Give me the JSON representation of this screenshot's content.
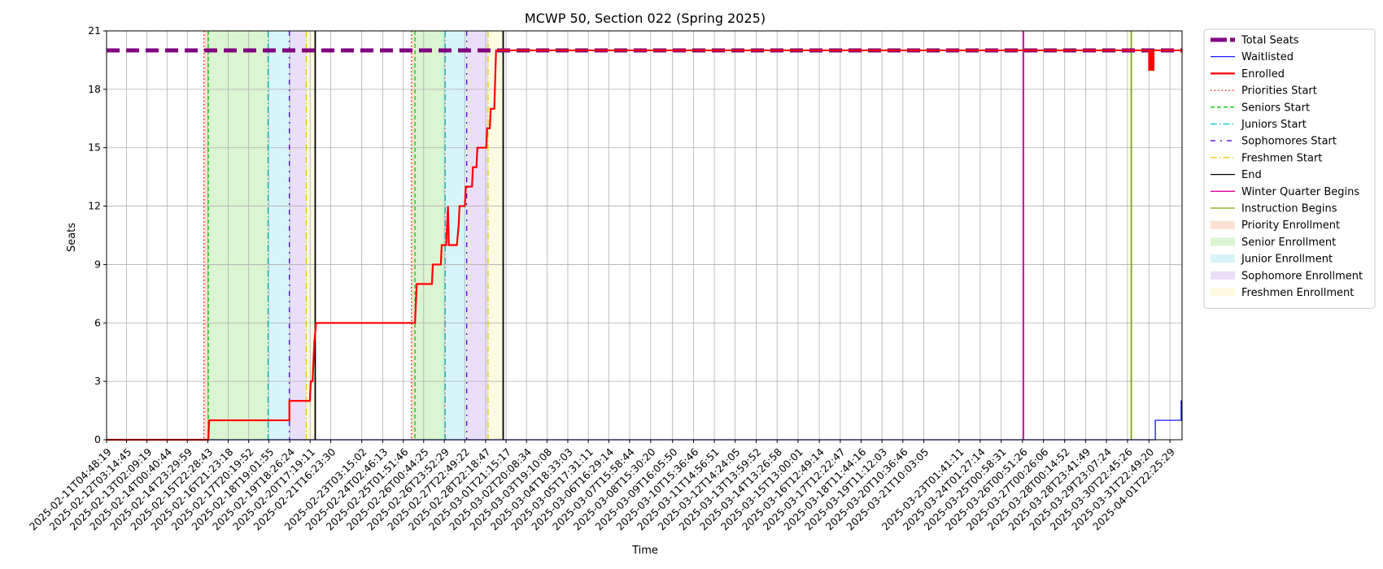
{
  "chart_data": {
    "type": "line",
    "title": "MCWP 50, Section 022 (Spring 2025)",
    "xlabel": "Time",
    "ylabel": "Seats",
    "ylim": [
      0,
      21
    ],
    "yticks": [
      0,
      3,
      6,
      9,
      12,
      15,
      18,
      21
    ],
    "grid": true,
    "legend_position": "outside-right",
    "x_range": [
      "2025-02-11T04:48:19",
      "2025-04-02T12:00:00"
    ],
    "xticks": [
      "2025-02-11T04:48:19",
      "2025-02-12T03:14:45",
      "2025-02-13T02:09:19",
      "2025-02-14T00:40:44",
      "2025-02-14T23:29:59",
      "2025-02-15T22:28:43",
      "2025-02-16T21:23:18",
      "2025-02-17T20:19:52",
      "2025-02-18T19:01:55",
      "2025-02-19T18:26:24",
      "2025-02-20T17:19:11",
      "2025-02-21T16:23:30",
      "2025-02-23T03:15:02",
      "2025-02-24T02:46:13",
      "2025-02-25T01:51:46",
      "2025-02-26T00:44:25",
      "2025-02-26T23:52:29",
      "2025-02-27T22:49:22",
      "2025-02-28T22:18:47",
      "2025-03-01T21:15:17",
      "2025-03-02T20:08:34",
      "2025-03-03T19:10:08",
      "2025-03-04T18:33:03",
      "2025-03-05T17:31:11",
      "2025-03-06T16:29:14",
      "2025-03-07T15:58:44",
      "2025-03-08T15:30:20",
      "2025-03-09T16:05:50",
      "2025-03-10T15:36:46",
      "2025-03-11T14:56:51",
      "2025-03-12T14:24:05",
      "2025-03-13T13:59:52",
      "2025-03-14T13:26:58",
      "2025-03-15T13:00:01",
      "2025-03-16T12:49:14",
      "2025-03-17T12:22:47",
      "2025-03-18T11:44:16",
      "2025-03-19T11:12:03",
      "2025-03-20T10:36:46",
      "2025-03-21T10:03:05",
      "2025-03-23T01:41:11",
      "2025-03-24T01:27:14",
      "2025-03-25T00:58:31",
      "2025-03-26T00:51:26",
      "2025-03-27T00:26:06",
      "2025-03-28T00:14:52",
      "2025-03-28T23:41:49",
      "2025-03-29T23:07:24",
      "2025-03-30T22:45:26",
      "2025-03-31T22:49:20",
      "2025-04-01T22:25:29"
    ],
    "series": [
      {
        "name": "Total Seats",
        "color": "#800080",
        "style": "dashed-thick",
        "points": [
          [
            "2025-02-11T04:48:19",
            20
          ],
          [
            "2025-04-02T12:00:00",
            20
          ]
        ]
      },
      {
        "name": "Waitlisted",
        "color": "#0000ff",
        "style": "solid-thin",
        "points": [
          [
            "2025-02-11T04:48:19",
            0
          ],
          [
            "2025-04-01T06:00:00",
            0
          ],
          [
            "2025-04-01T06:00:00",
            1
          ],
          [
            "2025-04-02T11:00:00",
            1
          ],
          [
            "2025-04-02T11:00:00",
            2
          ],
          [
            "2025-04-02T12:00:00",
            2
          ]
        ]
      },
      {
        "name": "Enrolled",
        "color": "#ff0000",
        "style": "solid-thick",
        "points": [
          [
            "2025-02-11T04:48:19",
            0
          ],
          [
            "2025-02-15T23:00:00",
            0
          ],
          [
            "2025-02-16T00:00:00",
            1
          ],
          [
            "2025-02-19T18:00:00",
            1
          ],
          [
            "2025-02-19T18:00:00",
            2
          ],
          [
            "2025-02-20T17:00:00",
            2
          ],
          [
            "2025-02-20T18:00:00",
            3
          ],
          [
            "2025-02-20T20:00:00",
            3
          ],
          [
            "2025-02-20T21:00:00",
            4
          ],
          [
            "2025-02-20T22:00:00",
            5
          ],
          [
            "2025-02-21T00:00:00",
            6
          ],
          [
            "2025-02-25T15:00:00",
            6
          ],
          [
            "2025-02-25T16:00:00",
            7
          ],
          [
            "2025-02-25T17:00:00",
            8
          ],
          [
            "2025-02-26T10:00:00",
            8
          ],
          [
            "2025-02-26T11:00:00",
            9
          ],
          [
            "2025-02-26T20:00:00",
            9
          ],
          [
            "2025-02-26T21:00:00",
            10
          ],
          [
            "2025-02-27T02:00:00",
            10
          ],
          [
            "2025-02-27T03:00:00",
            11
          ],
          [
            "2025-02-27T04:00:00",
            12
          ],
          [
            "2025-02-27T05:00:00",
            10
          ],
          [
            "2025-02-27T14:00:00",
            10
          ],
          [
            "2025-02-27T16:00:00",
            11
          ],
          [
            "2025-02-27T17:00:00",
            12
          ],
          [
            "2025-02-27T23:00:00",
            12
          ],
          [
            "2025-02-28T00:00:00",
            13
          ],
          [
            "2025-02-28T07:00:00",
            13
          ],
          [
            "2025-02-28T08:00:00",
            14
          ],
          [
            "2025-02-28T12:00:00",
            14
          ],
          [
            "2025-02-28T13:00:00",
            15
          ],
          [
            "2025-02-28T23:00:00",
            15
          ],
          [
            "2025-03-01T00:00:00",
            16
          ],
          [
            "2025-03-01T03:00:00",
            16
          ],
          [
            "2025-03-01T04:00:00",
            17
          ],
          [
            "2025-03-01T08:00:00",
            17
          ],
          [
            "2025-03-01T10:00:00",
            20
          ],
          [
            "2025-03-31T23:00:00",
            20
          ],
          [
            "2025-03-31T23:00:00",
            19
          ],
          [
            "2025-04-01T00:00:00",
            19
          ],
          [
            "2025-04-01T00:00:00",
            20
          ],
          [
            "2025-04-01T02:00:00",
            20
          ],
          [
            "2025-04-01T02:00:00",
            19
          ],
          [
            "2025-04-01T04:00:00",
            19
          ],
          [
            "2025-04-01T04:00:00",
            20
          ],
          [
            "2025-04-02T12:00:00",
            20
          ]
        ]
      }
    ],
    "spans": [
      {
        "name": "Priority Enrollment",
        "color": "#f4a582",
        "from": "2025-02-15T18:00:00",
        "to": "2025-02-15T23:00:00"
      },
      {
        "name": "Senior Enrollment",
        "color": "#98e07a",
        "from": "2025-02-15T23:00:00",
        "to": "2025-02-18T18:00:00"
      },
      {
        "name": "Junior Enrollment",
        "color": "#8de3ea",
        "from": "2025-02-18T18:00:00",
        "to": "2025-02-19T18:00:00"
      },
      {
        "name": "Sophomore Enrollment",
        "color": "#c3a2eb",
        "from": "2025-02-19T18:00:00",
        "to": "2025-02-20T13:00:00"
      },
      {
        "name": "Freshmen Enrollment",
        "color": "#f6f0a8",
        "from": "2025-02-20T13:00:00",
        "to": "2025-02-20T23:00:00"
      },
      {
        "name": "Priority Enrollment",
        "color": "#f4a582",
        "from": "2025-02-25T11:00:00",
        "to": "2025-02-25T15:00:00"
      },
      {
        "name": "Senior Enrollment",
        "color": "#98e07a",
        "from": "2025-02-25T15:00:00",
        "to": "2025-02-27T01:00:00"
      },
      {
        "name": "Junior Enrollment",
        "color": "#8de3ea",
        "from": "2025-02-27T01:00:00",
        "to": "2025-02-28T01:00:00"
      },
      {
        "name": "Sophomore Enrollment",
        "color": "#c3a2eb",
        "from": "2025-02-28T01:00:00",
        "to": "2025-03-01T01:00:00"
      },
      {
        "name": "Freshmen Enrollment",
        "color": "#f6f0a8",
        "from": "2025-03-01T01:00:00",
        "to": "2025-03-01T18:00:00"
      }
    ],
    "markers": [
      {
        "name": "Priorities Start",
        "color": "#ff0000",
        "style": "dotted",
        "at": "2025-02-15T18:00:00"
      },
      {
        "name": "Seniors Start",
        "color": "#00cc00",
        "style": "dashed",
        "at": "2025-02-15T23:00:00"
      },
      {
        "name": "Juniors Start",
        "color": "#00c0c0",
        "style": "dashdot",
        "at": "2025-02-18T18:00:00"
      },
      {
        "name": "Sophomores Start",
        "color": "#5500cc",
        "style": "dashdot-wide",
        "at": "2025-02-19T18:00:00"
      },
      {
        "name": "Freshmen Start",
        "color": "#e6c800",
        "style": "dashdot",
        "at": "2025-02-20T13:00:00"
      },
      {
        "name": "End",
        "color": "#000000",
        "style": "solid",
        "at": "2025-02-20T23:00:00"
      },
      {
        "name": "Priorities Start",
        "color": "#ff0000",
        "style": "dotted",
        "at": "2025-02-25T11:00:00"
      },
      {
        "name": "Seniors Start",
        "color": "#00cc00",
        "style": "dashed",
        "at": "2025-02-25T15:00:00"
      },
      {
        "name": "Juniors Start",
        "color": "#00c0c0",
        "style": "dashdot",
        "at": "2025-02-27T01:00:00"
      },
      {
        "name": "Sophomores Start",
        "color": "#5500cc",
        "style": "dashdot-wide",
        "at": "2025-02-28T01:00:00"
      },
      {
        "name": "Freshmen Start",
        "color": "#e6c800",
        "style": "dashdot",
        "at": "2025-03-01T01:00:00"
      },
      {
        "name": "End",
        "color": "#000000",
        "style": "solid",
        "at": "2025-03-01T18:00:00"
      },
      {
        "name": "Winter Quarter Begins",
        "color": "#dd0099",
        "style": "solid",
        "at": "2025-03-26T02:00:00"
      },
      {
        "name": "Instruction Begins",
        "color": "#7aaa00",
        "style": "solid",
        "at": "2025-03-31T03:00:00"
      }
    ],
    "legend": [
      {
        "label": "Total Seats",
        "kind": "line",
        "color": "#800080",
        "style": "dashed-thick"
      },
      {
        "label": "Waitlisted",
        "kind": "line",
        "color": "#0000ff",
        "style": "solid-thin"
      },
      {
        "label": "Enrolled",
        "kind": "line",
        "color": "#ff0000",
        "style": "solid-thick"
      },
      {
        "label": "Priorities Start",
        "kind": "line",
        "color": "#ff0000",
        "style": "dotted"
      },
      {
        "label": "Seniors Start",
        "kind": "line",
        "color": "#00cc00",
        "style": "dashed"
      },
      {
        "label": "Juniors Start",
        "kind": "line",
        "color": "#00c0c0",
        "style": "dashdot"
      },
      {
        "label": "Sophomores Start",
        "kind": "line",
        "color": "#5500cc",
        "style": "dashdot-wide"
      },
      {
        "label": "Freshmen Start",
        "kind": "line",
        "color": "#e6c800",
        "style": "dashdot"
      },
      {
        "label": "End",
        "kind": "line",
        "color": "#000000",
        "style": "solid"
      },
      {
        "label": "Winter Quarter Begins",
        "kind": "line",
        "color": "#dd0099",
        "style": "solid"
      },
      {
        "label": "Instruction Begins",
        "kind": "line",
        "color": "#7aaa00",
        "style": "solid"
      },
      {
        "label": "Priority Enrollment",
        "kind": "patch",
        "color": "#f4a582"
      },
      {
        "label": "Senior Enrollment",
        "kind": "patch",
        "color": "#98e07a"
      },
      {
        "label": "Junior Enrollment",
        "kind": "patch",
        "color": "#8de3ea"
      },
      {
        "label": "Sophomore Enrollment",
        "kind": "patch",
        "color": "#c3a2eb"
      },
      {
        "label": "Freshmen Enrollment",
        "kind": "patch",
        "color": "#f6f0a8"
      }
    ]
  }
}
